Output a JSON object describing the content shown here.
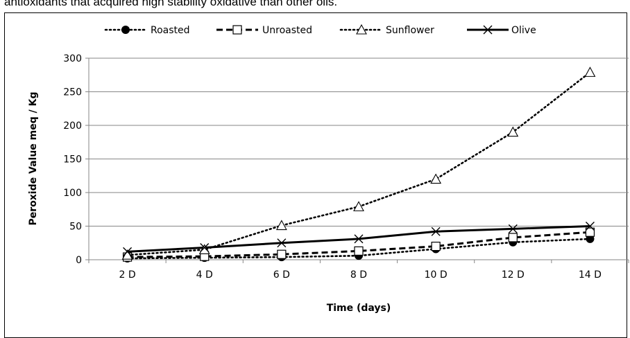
{
  "caption": "antioxidants that acquired high stability oxidative than other oils.",
  "chart_data": {
    "type": "line",
    "categories": [
      "2 D",
      "4 D",
      "6 D",
      "8 D",
      "10 D",
      "12 D",
      "14 D"
    ],
    "xlabel": "Time (days)",
    "ylabel": "Peroxide Value meq / Kg",
    "ylim": [
      0,
      300
    ],
    "yticks": [
      0,
      50,
      100,
      150,
      200,
      250,
      300
    ],
    "grid": true,
    "legend_position": "top",
    "series": [
      {
        "name": "Roasted",
        "values": [
          2,
          3,
          4,
          6,
          16,
          26,
          31
        ],
        "line_style": "dotted",
        "marker": "filled-circle",
        "color": "#000000"
      },
      {
        "name": "Unroasted",
        "values": [
          4,
          5,
          8,
          13,
          20,
          33,
          41
        ],
        "line_style": "dashed",
        "marker": "open-square",
        "color": "#000000"
      },
      {
        "name": "Sunflower",
        "values": [
          7,
          15,
          51,
          79,
          120,
          190,
          279
        ],
        "line_style": "dotted",
        "marker": "open-triangle",
        "color": "#000000"
      },
      {
        "name": "Olive",
        "values": [
          12,
          18,
          25,
          31,
          42,
          46,
          50
        ],
        "line_style": "solid",
        "marker": "x-cross",
        "color": "#000000"
      }
    ]
  }
}
